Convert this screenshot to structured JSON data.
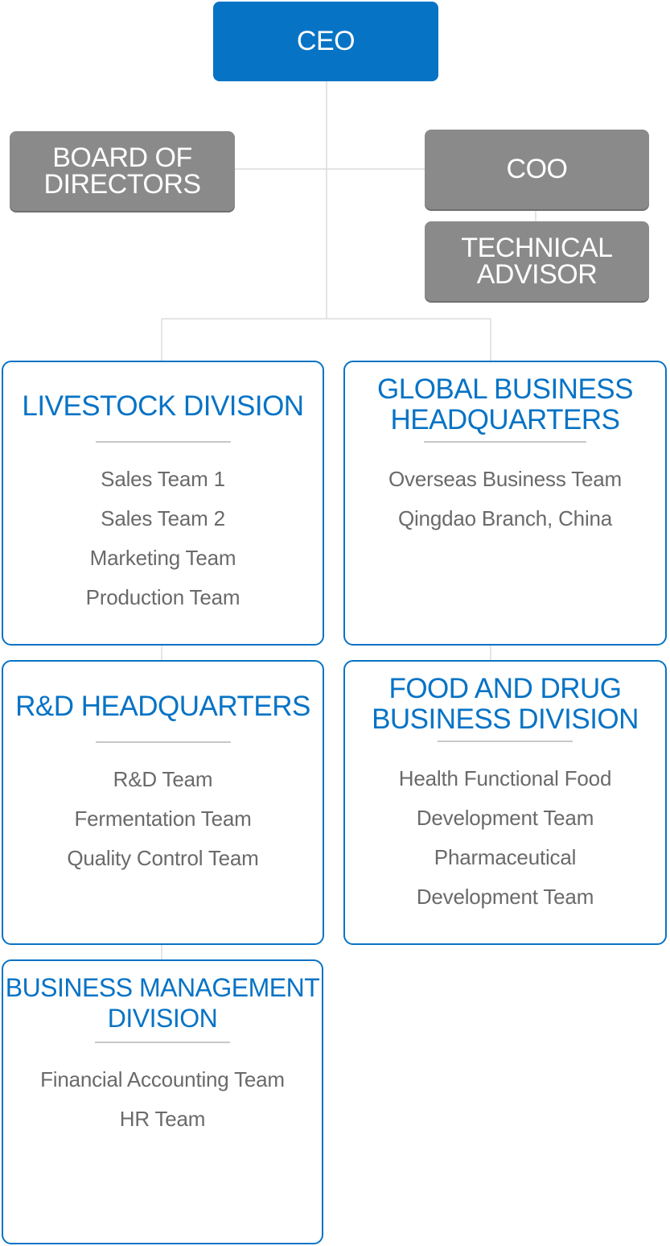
{
  "ceo": {
    "label": "CEO"
  },
  "board": {
    "lines": [
      "BOARD OF",
      "DIRECTORS"
    ]
  },
  "coo": {
    "label": "COO"
  },
  "advisor": {
    "lines": [
      "TECHNICAL",
      "ADVISOR"
    ]
  },
  "divisions": {
    "livestock": {
      "title": "LIVESTOCK DIVISION",
      "teams": [
        "Sales Team 1",
        "Sales Team 2",
        "Marketing Team",
        "Production Team"
      ]
    },
    "global": {
      "title_lines": [
        "GLOBAL BUSINESS",
        "HEADQUARTERS"
      ],
      "teams": [
        "Overseas Business Team",
        "Qingdao Branch, China"
      ]
    },
    "rnd": {
      "title": "R&D HEADQUARTERS",
      "teams": [
        "R&D Team",
        "Fermentation Team",
        "Quality Control Team"
      ]
    },
    "food": {
      "title_lines": [
        "FOOD AND DRUG",
        "BUSINESS DIVISION"
      ],
      "teams": [
        "Health Functional Food",
        "Development Team",
        "Pharmaceutical",
        "Development Team"
      ]
    },
    "business": {
      "title_lines": [
        "BUSINESS MANAGEMENT",
        "DIVISION"
      ],
      "teams": [
        "Financial Accounting Team",
        "HR Team"
      ]
    }
  },
  "colors": {
    "primary_blue": "#0773c5",
    "gray_box": "#8a8a8a",
    "team_text": "#6a6a6a",
    "connector": "#dcdcdc"
  }
}
